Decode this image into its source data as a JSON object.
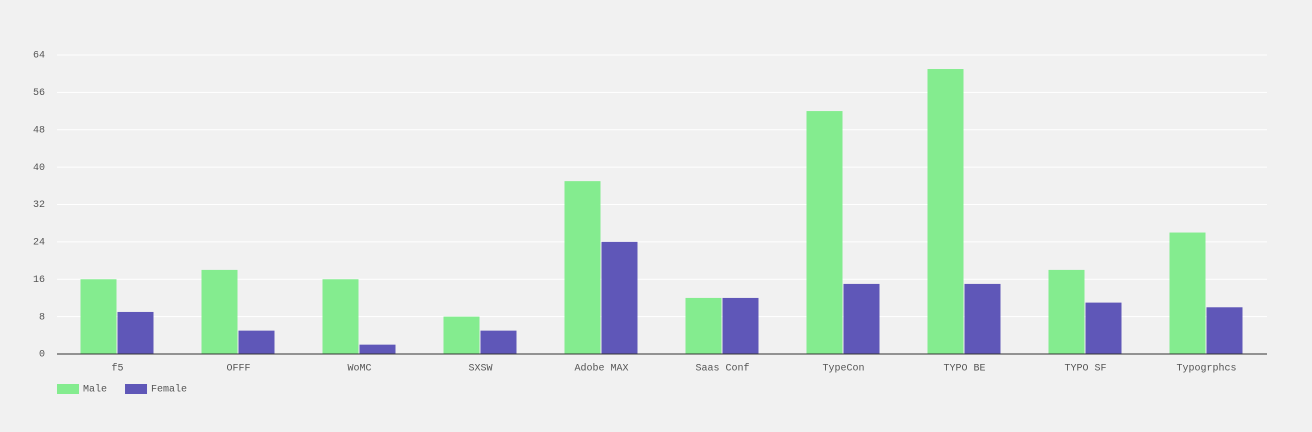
{
  "chart_data": {
    "type": "bar",
    "categories": [
      "f5",
      "OFFF",
      "WoMC",
      "SXSW",
      "Adobe MAX",
      "Saas Conf",
      "TypeCon",
      "TYPO BE",
      "TYPO SF",
      "Typogrphcs"
    ],
    "series": [
      {
        "name": "Male",
        "color": "#84ec8f",
        "values": [
          16,
          18,
          16,
          8,
          37,
          12,
          52,
          61,
          18,
          26
        ]
      },
      {
        "name": "Female",
        "color": "#5f57b8",
        "values": [
          9,
          5,
          2,
          5,
          24,
          12,
          15,
          15,
          11,
          10
        ]
      }
    ],
    "ylim": [
      0,
      64
    ],
    "yticks": [
      0,
      8,
      16,
      24,
      32,
      40,
      48,
      56,
      64
    ],
    "grid": true,
    "legend": "bottom-left"
  }
}
